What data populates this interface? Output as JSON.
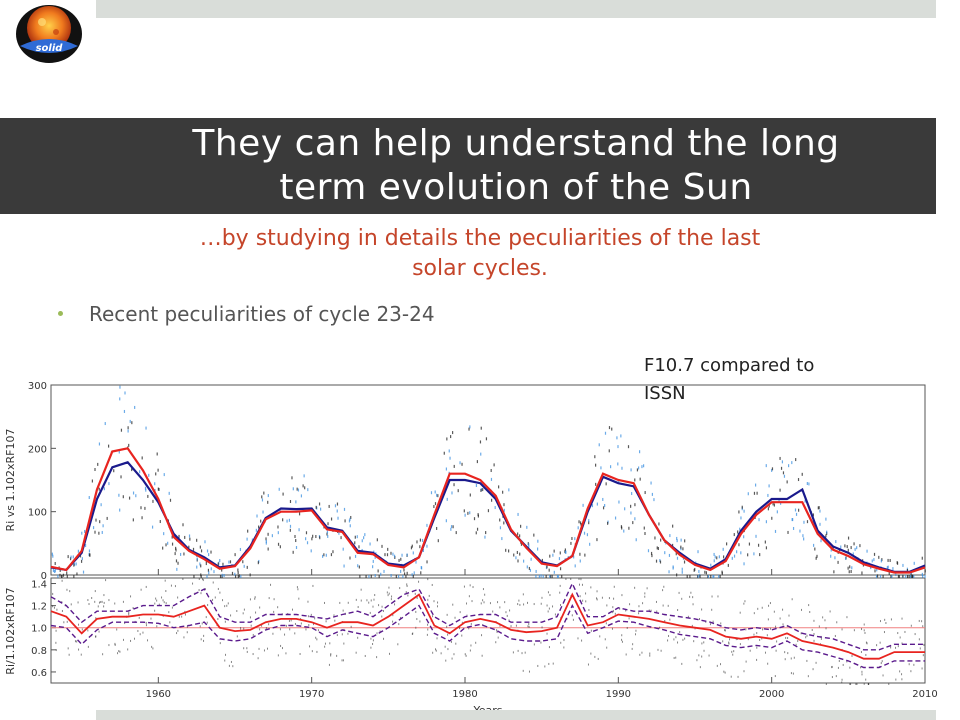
{
  "slide": {
    "title_line1": "They can help understand the long",
    "title_line2": "term evolution of the Sun",
    "subtitle_line1": "…by studying in details the peculiarities of the last",
    "subtitle_line2": "solar cycles.",
    "bullet": "Recent peculiarities of cycle 23-24",
    "annotation_line1": "F10.7 compared to",
    "annotation_line2": "ISSN",
    "logo_text": "solid",
    "colors": {
      "title_band": "#3a3a3a",
      "subtitle": "#c5452a",
      "bullet_dot": "#9bbb59",
      "accent_bars": "#d9ddd9"
    }
  },
  "chart_data": [
    {
      "type": "line",
      "ylabel": "Ri vs 1.102xRF107",
      "ylim": [
        0,
        300
      ],
      "yticks": [
        "0",
        "100",
        "200",
        "300"
      ],
      "xlim": [
        1953,
        2010
      ],
      "series": [
        {
          "color": "#1a1a8c",
          "x": [
            1953,
            1954,
            1955,
            1956,
            1957,
            1958,
            1959,
            1960,
            1961,
            1962,
            1963,
            1964,
            1965,
            1966,
            1967,
            1968,
            1969,
            1970,
            1971,
            1972,
            1973,
            1974,
            1975,
            1976,
            1977,
            1978,
            1979,
            1980,
            1981,
            1982,
            1983,
            1984,
            1985,
            1986,
            1987,
            1988,
            1989,
            1990,
            1991,
            1992,
            1993,
            1994,
            1995,
            1996,
            1997,
            1998,
            1999,
            2000,
            2001,
            2002,
            2003,
            2004,
            2005,
            2006,
            2007,
            2008,
            2009,
            2010
          ],
          "values": [
            12,
            8,
            35,
            120,
            170,
            178,
            150,
            115,
            65,
            40,
            28,
            12,
            15,
            45,
            90,
            105,
            104,
            105,
            75,
            70,
            38,
            35,
            18,
            15,
            28,
            90,
            150,
            150,
            145,
            120,
            70,
            45,
            20,
            15,
            30,
            100,
            155,
            145,
            140,
            95,
            55,
            35,
            18,
            10,
            25,
            70,
            100,
            120,
            120,
            135,
            70,
            45,
            35,
            20,
            12,
            5,
            5,
            15
          ]
        },
        {
          "color": "#e8241f",
          "x": [
            1953,
            1954,
            1955,
            1956,
            1957,
            1958,
            1959,
            1960,
            1961,
            1962,
            1963,
            1964,
            1965,
            1966,
            1967,
            1968,
            1969,
            1970,
            1971,
            1972,
            1973,
            1974,
            1975,
            1976,
            1977,
            1978,
            1979,
            1980,
            1981,
            1982,
            1983,
            1984,
            1985,
            1986,
            1987,
            1988,
            1989,
            1990,
            1991,
            1992,
            1993,
            1994,
            1995,
            1996,
            1997,
            1998,
            1999,
            2000,
            2001,
            2002,
            2003,
            2004,
            2005,
            2006,
            2007,
            2008,
            2009,
            2010
          ],
          "values": [
            13,
            8,
            38,
            135,
            195,
            200,
            165,
            120,
            60,
            38,
            25,
            10,
            14,
            42,
            88,
            100,
            100,
            102,
            72,
            68,
            35,
            33,
            16,
            12,
            28,
            95,
            160,
            160,
            150,
            125,
            72,
            43,
            18,
            14,
            30,
            105,
            160,
            150,
            145,
            95,
            55,
            32,
            16,
            8,
            22,
            65,
            95,
            115,
            115,
            115,
            65,
            40,
            30,
            17,
            10,
            4,
            4,
            12
          ]
        }
      ]
    },
    {
      "type": "line",
      "ylabel": "Ri/1.102xRF107",
      "ylim": [
        0.5,
        1.45
      ],
      "yticks": [
        "0.6",
        "0.8",
        "1.0",
        "1.2",
        "1.4"
      ],
      "xlim": [
        1953,
        2010
      ],
      "xticks": [
        "1960",
        "1970",
        "1980",
        "1990",
        "2000",
        "2010"
      ],
      "xlabel": "Years",
      "reference_line": 1.0,
      "series": [
        {
          "color": "#e8241f",
          "x": [
            1953,
            1954,
            1955,
            1956,
            1957,
            1958,
            1959,
            1960,
            1961,
            1962,
            1963,
            1964,
            1965,
            1966,
            1967,
            1968,
            1969,
            1970,
            1971,
            1972,
            1973,
            1974,
            1975,
            1976,
            1977,
            1978,
            1979,
            1980,
            1981,
            1982,
            1983,
            1984,
            1985,
            1986,
            1987,
            1988,
            1989,
            1990,
            1991,
            1992,
            1993,
            1994,
            1995,
            1996,
            1997,
            1998,
            1999,
            2000,
            2001,
            2002,
            2003,
            2004,
            2005,
            2006,
            2007,
            2008,
            2009,
            2010
          ],
          "values": [
            1.15,
            1.1,
            0.95,
            1.08,
            1.1,
            1.1,
            1.12,
            1.12,
            1.1,
            1.15,
            1.2,
            1.0,
            0.97,
            0.98,
            1.05,
            1.08,
            1.08,
            1.05,
            1.0,
            1.05,
            1.05,
            1.02,
            1.1,
            1.2,
            1.3,
            1.02,
            0.95,
            1.05,
            1.08,
            1.05,
            0.98,
            0.96,
            0.97,
            1.0,
            1.3,
            1.02,
            1.05,
            1.12,
            1.1,
            1.08,
            1.05,
            1.02,
            1.0,
            0.98,
            0.92,
            0.9,
            0.92,
            0.9,
            0.95,
            0.88,
            0.85,
            0.82,
            0.78,
            0.72,
            0.72,
            0.78,
            0.78,
            0.78
          ]
        },
        {
          "color": "#5a1a8c",
          "x": [
            1953,
            1954,
            1955,
            1956,
            1957,
            1958,
            1959,
            1960,
            1961,
            1962,
            1963,
            1964,
            1965,
            1966,
            1967,
            1968,
            1969,
            1970,
            1971,
            1972,
            1973,
            1974,
            1975,
            1976,
            1977,
            1978,
            1979,
            1980,
            1981,
            1982,
            1983,
            1984,
            1985,
            1986,
            1987,
            1988,
            1989,
            1990,
            1991,
            1992,
            1993,
            1994,
            1995,
            1996,
            1997,
            1998,
            1999,
            2000,
            2001,
            2002,
            2003,
            2004,
            2005,
            2006,
            2007,
            2008,
            2009,
            2010
          ],
          "values": [
            1.28,
            1.2,
            1.05,
            1.15,
            1.15,
            1.15,
            1.2,
            1.2,
            1.2,
            1.28,
            1.35,
            1.1,
            1.05,
            1.05,
            1.12,
            1.12,
            1.12,
            1.1,
            1.08,
            1.12,
            1.15,
            1.1,
            1.2,
            1.3,
            1.35,
            1.1,
            1.02,
            1.1,
            1.12,
            1.12,
            1.05,
            1.05,
            1.05,
            1.1,
            1.4,
            1.1,
            1.1,
            1.18,
            1.15,
            1.15,
            1.12,
            1.1,
            1.08,
            1.05,
            1.0,
            0.98,
            1.0,
            0.98,
            1.02,
            0.95,
            0.92,
            0.9,
            0.85,
            0.8,
            0.8,
            0.85,
            0.85,
            0.85
          ]
        },
        {
          "color": "#5a1a8c",
          "x": [
            1953,
            1954,
            1955,
            1956,
            1957,
            1958,
            1959,
            1960,
            1961,
            1962,
            1963,
            1964,
            1965,
            1966,
            1967,
            1968,
            1969,
            1970,
            1971,
            1972,
            1973,
            1974,
            1975,
            1976,
            1977,
            1978,
            1979,
            1980,
            1981,
            1982,
            1983,
            1984,
            1985,
            1986,
            1987,
            1988,
            1989,
            1990,
            1991,
            1992,
            1993,
            1994,
            1995,
            1996,
            1997,
            1998,
            1999,
            2000,
            2001,
            2002,
            2003,
            2004,
            2005,
            2006,
            2007,
            2008,
            2009,
            2010
          ],
          "values": [
            1.02,
            1.0,
            0.85,
            0.98,
            1.05,
            1.05,
            1.05,
            1.04,
            1.0,
            1.02,
            1.05,
            0.9,
            0.88,
            0.9,
            0.98,
            1.02,
            1.02,
            1.0,
            0.92,
            0.98,
            0.95,
            0.92,
            1.0,
            1.1,
            1.2,
            0.95,
            0.88,
            1.0,
            1.03,
            0.98,
            0.9,
            0.88,
            0.88,
            0.9,
            1.2,
            0.95,
            1.0,
            1.06,
            1.05,
            1.01,
            0.98,
            0.94,
            0.92,
            0.9,
            0.84,
            0.82,
            0.84,
            0.82,
            0.88,
            0.8,
            0.78,
            0.74,
            0.7,
            0.64,
            0.64,
            0.7,
            0.7,
            0.7
          ]
        }
      ]
    }
  ]
}
